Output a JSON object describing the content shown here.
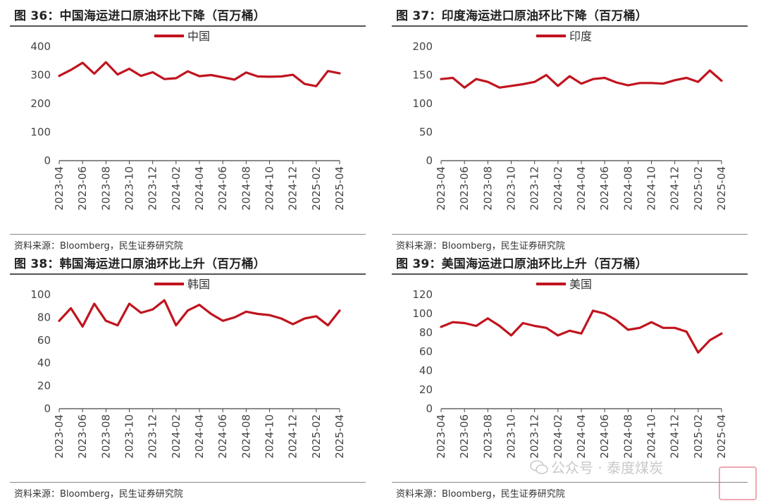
{
  "panels": [
    {
      "title": "图 36：中国海运进口原油环比下降（百万桶）",
      "source": "资料来源：Bloomberg，民生证券研究院",
      "chart_data": {
        "type": "line",
        "legend": "中国",
        "legend_position": "top-center",
        "ylim": [
          0,
          400
        ],
        "yticks": [
          0,
          100,
          200,
          300,
          400
        ],
        "xtick_labels": [
          "2023-04",
          "2023-06",
          "2023-08",
          "2023-10",
          "2023-12",
          "2024-02",
          "2024-04",
          "2024-06",
          "2024-08",
          "2024-10",
          "2024-12",
          "2025-02",
          "2025-04"
        ],
        "x": [
          "2023-04",
          "2023-05",
          "2023-06",
          "2023-07",
          "2023-08",
          "2023-09",
          "2023-10",
          "2023-11",
          "2023-12",
          "2024-01",
          "2024-02",
          "2024-03",
          "2024-04",
          "2024-05",
          "2024-06",
          "2024-07",
          "2024-08",
          "2024-09",
          "2024-10",
          "2024-11",
          "2024-12",
          "2025-01",
          "2025-02",
          "2025-03",
          "2025-04"
        ],
        "values": [
          297,
          318,
          343,
          305,
          345,
          302,
          322,
          297,
          310,
          286,
          289,
          313,
          296,
          300,
          292,
          284,
          309,
          295,
          294,
          295,
          301,
          269,
          261,
          314,
          306
        ],
        "color": "#c0141e",
        "grid": false
      }
    },
    {
      "title": "图 37：印度海运进口原油环比下降（百万桶）",
      "source": "资料来源：Bloomberg，民生证券研究院",
      "chart_data": {
        "type": "line",
        "legend": "印度",
        "legend_position": "top-center",
        "ylim": [
          0,
          200
        ],
        "yticks": [
          0,
          50,
          100,
          150,
          200
        ],
        "xtick_labels": [
          "2023-04",
          "2023-06",
          "2023-08",
          "2023-10",
          "2023-12",
          "2024-02",
          "2024-04",
          "2024-06",
          "2024-08",
          "2024-10",
          "2024-12",
          "2025-02",
          "2025-04"
        ],
        "x": [
          "2023-04",
          "2023-05",
          "2023-06",
          "2023-07",
          "2023-08",
          "2023-09",
          "2023-10",
          "2023-11",
          "2023-12",
          "2024-01",
          "2024-02",
          "2024-03",
          "2024-04",
          "2024-05",
          "2024-06",
          "2024-07",
          "2024-08",
          "2024-09",
          "2024-10",
          "2024-11",
          "2024-12",
          "2025-01",
          "2025-02",
          "2025-03",
          "2025-04"
        ],
        "values": [
          143,
          145,
          128,
          143,
          138,
          128,
          131,
          134,
          138,
          150,
          131,
          148,
          135,
          143,
          145,
          137,
          132,
          136,
          136,
          135,
          141,
          145,
          138,
          158,
          140
        ],
        "color": "#c0141e",
        "grid": false
      }
    },
    {
      "title": "图 38：韩国海运进口原油环比上升（百万桶）",
      "source": "资料来源：Bloomberg，民生证券研究院",
      "chart_data": {
        "type": "line",
        "legend": "韩国",
        "legend_position": "top-center",
        "ylim": [
          0,
          100
        ],
        "yticks": [
          0,
          20,
          40,
          60,
          80,
          100
        ],
        "xtick_labels": [
          "2023-04",
          "2023-06",
          "2023-08",
          "2023-10",
          "2023-12",
          "2024-02",
          "2024-04",
          "2024-06",
          "2024-08",
          "2024-10",
          "2024-12",
          "2025-02",
          "2025-04"
        ],
        "x": [
          "2023-04",
          "2023-05",
          "2023-06",
          "2023-07",
          "2023-08",
          "2023-09",
          "2023-10",
          "2023-11",
          "2023-12",
          "2024-01",
          "2024-02",
          "2024-03",
          "2024-04",
          "2024-05",
          "2024-06",
          "2024-07",
          "2024-08",
          "2024-09",
          "2024-10",
          "2024-11",
          "2024-12",
          "2025-01",
          "2025-02",
          "2025-03",
          "2025-04"
        ],
        "values": [
          77,
          88,
          72,
          92,
          77,
          73,
          92,
          84,
          87,
          95,
          73,
          86,
          91,
          83,
          77,
          80,
          85,
          83,
          82,
          79,
          74,
          79,
          81,
          73,
          86
        ],
        "color": "#c0141e",
        "grid": false
      }
    },
    {
      "title": "图 39：美国海运进口原油环比上升（百万桶）",
      "source": "资料来源：Bloomberg，民生证券研究院",
      "chart_data": {
        "type": "line",
        "legend": "美国",
        "legend_position": "top-center",
        "ylim": [
          0,
          120
        ],
        "yticks": [
          0,
          20,
          40,
          60,
          80,
          100,
          120
        ],
        "xtick_labels": [
          "2023-04",
          "2023-06",
          "2023-08",
          "2023-10",
          "2023-12",
          "2024-02",
          "2024-04",
          "2024-06",
          "2024-08",
          "2024-10",
          "2024-12",
          "2025-02",
          "2025-04"
        ],
        "x": [
          "2023-04",
          "2023-05",
          "2023-06",
          "2023-07",
          "2023-08",
          "2023-09",
          "2023-10",
          "2023-11",
          "2023-12",
          "2024-01",
          "2024-02",
          "2024-03",
          "2024-04",
          "2024-05",
          "2024-06",
          "2024-07",
          "2024-08",
          "2024-09",
          "2024-10",
          "2024-11",
          "2024-12",
          "2025-01",
          "2025-02",
          "2025-03",
          "2025-04"
        ],
        "values": [
          86,
          91,
          90,
          87,
          95,
          87,
          77,
          90,
          87,
          85,
          77,
          82,
          79,
          103,
          100,
          93,
          83,
          85,
          91,
          85,
          85,
          81,
          59,
          72,
          79
        ],
        "color": "#c0141e",
        "grid": false
      }
    }
  ],
  "watermark": {
    "text": "公众号 · 泰度煤炭",
    "icon": "wechat-icon"
  }
}
